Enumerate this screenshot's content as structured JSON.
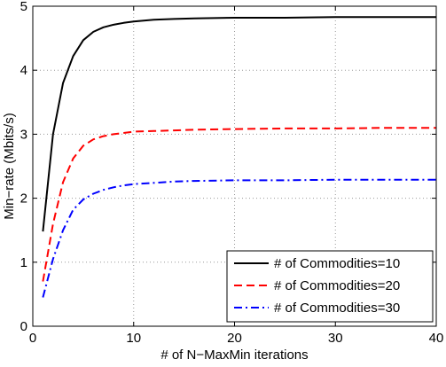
{
  "chart_data": {
    "type": "line",
    "title": "",
    "xlabel": "# of N−MaxMin iterations",
    "ylabel": "Min−rate (Mbits/s)",
    "xlim": [
      0,
      40
    ],
    "ylim": [
      0,
      5
    ],
    "xticks": [
      0,
      10,
      20,
      30,
      40
    ],
    "yticks": [
      0,
      1,
      2,
      3,
      4,
      5
    ],
    "grid": true,
    "grid_style": "dotted",
    "legend_position": "bottom-right",
    "x": [
      1,
      2,
      3,
      4,
      5,
      6,
      7,
      8,
      9,
      10,
      12,
      14,
      16,
      20,
      25,
      30,
      35,
      40
    ],
    "series": [
      {
        "name": "# of Commodities=10",
        "color": "#000000",
        "dash": "solid",
        "values": [
          1.48,
          3.0,
          3.8,
          4.22,
          4.47,
          4.6,
          4.67,
          4.71,
          4.74,
          4.76,
          4.79,
          4.8,
          4.81,
          4.82,
          4.82,
          4.83,
          4.83,
          4.83
        ]
      },
      {
        "name": "# of Commodities=20",
        "color": "#ff0000",
        "dash": "dashed",
        "values": [
          0.7,
          1.6,
          2.25,
          2.62,
          2.82,
          2.92,
          2.97,
          3.0,
          3.02,
          3.04,
          3.05,
          3.06,
          3.07,
          3.08,
          3.09,
          3.09,
          3.1,
          3.1
        ]
      },
      {
        "name": "# of Commodities=30",
        "color": "#0000ff",
        "dash": "dashdot",
        "values": [
          0.45,
          1.05,
          1.5,
          1.82,
          1.98,
          2.07,
          2.13,
          2.17,
          2.2,
          2.22,
          2.24,
          2.26,
          2.27,
          2.28,
          2.28,
          2.29,
          2.29,
          2.29
        ]
      }
    ]
  }
}
